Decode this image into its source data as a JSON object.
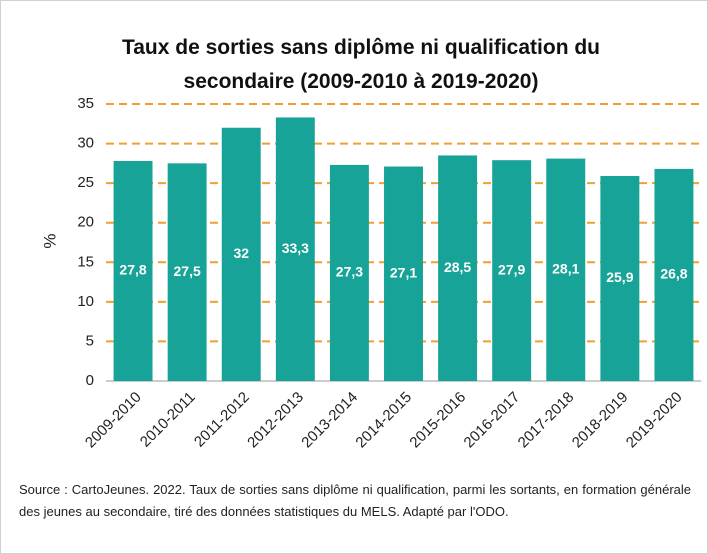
{
  "chart_data": {
    "type": "bar",
    "title": "Taux de sorties sans diplôme ni qualification du secondaire (2009-2010 à 2019-2020)",
    "y_label": "%",
    "categories": [
      "2009-2010",
      "2010-2011",
      "2011-2012",
      "2012-2013",
      "2013-2014",
      "2014-2015",
      "2015-2016",
      "2016-2017",
      "2017-2018",
      "2018-2019",
      "2019-2020"
    ],
    "values": [
      27.8,
      27.5,
      32,
      33.3,
      27.3,
      27.1,
      28.5,
      27.9,
      28.1,
      25.9,
      26.8
    ],
    "value_labels": [
      "27,8",
      "27,5",
      "32",
      "33,3",
      "27,3",
      "27,1",
      "28,5",
      "27,9",
      "28,1",
      "25,9",
      "26,8"
    ],
    "color": "#17a398",
    "ylim": [
      0,
      35
    ],
    "yticks": [
      0,
      5,
      10,
      15,
      20,
      25,
      30,
      35
    ],
    "grid": true,
    "grid_color": "#f0a030",
    "source": "Source : CartoJeunes. 2022. Taux de sorties sans diplôme ni qualification, parmi les sortants, en formation générale des jeunes au secondaire, tiré des données statistiques du MELS. Adapté par l'ODO."
  }
}
